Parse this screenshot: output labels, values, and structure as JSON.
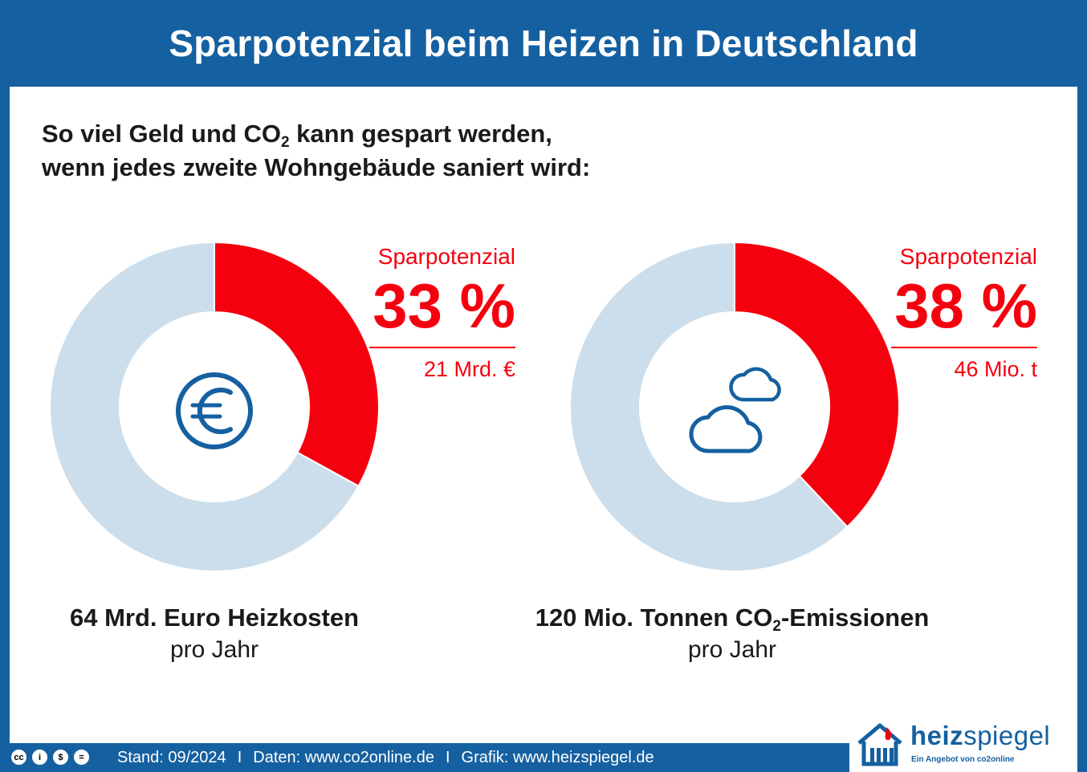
{
  "title": "Sparpotenzial beim Heizen in Deutschland",
  "subtitle": {
    "line1_before": "So viel Geld und CO",
    "line1_sub": "2",
    "line1_after": " kann gespart werden,",
    "line2": "wenn jedes zweite Wohngebäude saniert wird:"
  },
  "colors": {
    "saved": "#f5000e",
    "remaining": "#ccdeeb",
    "accent": "#1560a0"
  },
  "chart_data": [
    {
      "type": "pie",
      "style": "donut",
      "icon": "euro-icon",
      "slices": [
        {
          "label": "Sparpotenzial",
          "value": 33
        },
        {
          "label": "",
          "value": 67
        }
      ],
      "callout": {
        "label": "Sparpotenzial",
        "percent_text": "33 %",
        "amount": "21 Mrd. €"
      },
      "caption": {
        "main": "64 Mrd. Euro Heizkosten",
        "per": "pro Jahr"
      }
    },
    {
      "type": "pie",
      "style": "donut",
      "icon": "cloud-icon",
      "slices": [
        {
          "label": "Sparpotenzial",
          "value": 38
        },
        {
          "label": "",
          "value": 62
        }
      ],
      "callout": {
        "label": "Sparpotenzial",
        "percent_text": "38 %",
        "amount": "46 Mio. t"
      },
      "caption": {
        "main_before": "120 Mio. Tonnen CO",
        "main_sub": "2",
        "main_after": "-Emissionen",
        "per": "pro Jahr"
      }
    }
  ],
  "footer": {
    "cc_icons": [
      "cc",
      "i",
      "$",
      "="
    ],
    "stand": "Stand: 09/2024",
    "separator": "I",
    "daten": "Daten: www.co2online.de",
    "grafik": "Grafik: www.heizspiegel.de"
  },
  "logo": {
    "brand_bold": "heiz",
    "brand_rest": "spiegel",
    "tagline": "Ein Angebot von co2online"
  }
}
